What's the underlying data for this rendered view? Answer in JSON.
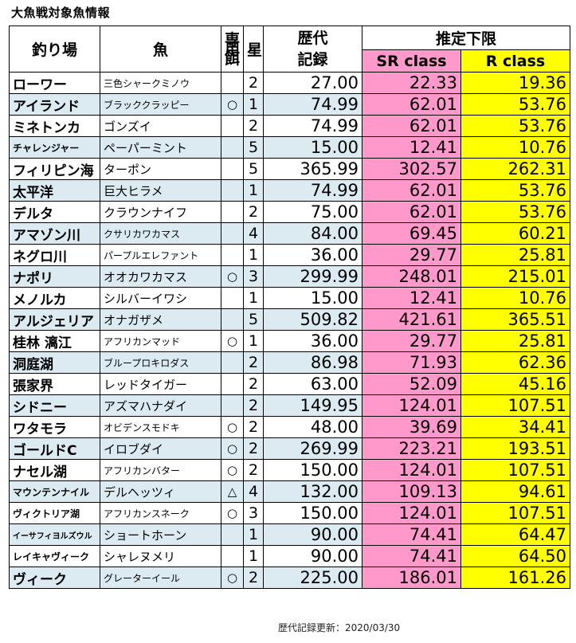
{
  "title": "大魚戦対象魚情報",
  "headers": {
    "spot": "釣り場",
    "fish": "魚",
    "bait": "専用餌",
    "star": "星",
    "record": "歴代記録",
    "estimate": "推定下限",
    "sr": "SR class",
    "r": "R class"
  },
  "rows": [
    {
      "spot": "ローワー",
      "fish": "三色シャークミノウ",
      "bait": "",
      "star": "2",
      "record": "27.00",
      "sr": "22.33",
      "r": "19.36"
    },
    {
      "spot": "アイランド",
      "fish": "ブラッククラッピー",
      "bait": "○",
      "star": "1",
      "record": "74.99",
      "sr": "62.01",
      "r": "53.76"
    },
    {
      "spot": "ミネトンカ",
      "fish": "ゴンズイ",
      "bait": "",
      "star": "2",
      "record": "74.99",
      "sr": "62.01",
      "r": "53.76"
    },
    {
      "spot": "チャレンジャー",
      "fish": "ペーパーミント",
      "bait": "",
      "star": "5",
      "record": "15.00",
      "sr": "12.41",
      "r": "10.76"
    },
    {
      "spot": "フィリピン海",
      "fish": "ターポン",
      "bait": "",
      "star": "5",
      "record": "365.99",
      "sr": "302.57",
      "r": "262.31"
    },
    {
      "spot": "太平洋",
      "fish": "巨大ヒラメ",
      "bait": "",
      "star": "1",
      "record": "74.99",
      "sr": "62.01",
      "r": "53.76"
    },
    {
      "spot": "デルタ",
      "fish": "クラウンナイフ",
      "bait": "",
      "star": "2",
      "record": "75.00",
      "sr": "62.01",
      "r": "53.76"
    },
    {
      "spot": "アマゾン川",
      "fish": "クサリカワカマス",
      "bait": "",
      "star": "4",
      "record": "84.00",
      "sr": "69.45",
      "r": "60.21"
    },
    {
      "spot": "ネグロ川",
      "fish": "パープルエレファント",
      "bait": "",
      "star": "1",
      "record": "36.00",
      "sr": "29.77",
      "r": "25.81"
    },
    {
      "spot": "ナポリ",
      "fish": "オオカワカマス",
      "bait": "○",
      "star": "3",
      "record": "299.99",
      "sr": "248.01",
      "r": "215.01"
    },
    {
      "spot": "メノルカ",
      "fish": "シルバーイワシ",
      "bait": "",
      "star": "1",
      "record": "15.00",
      "sr": "12.41",
      "r": "10.76"
    },
    {
      "spot": "アルジェリア",
      "fish": "オナガザメ",
      "bait": "",
      "star": "5",
      "record": "509.82",
      "sr": "421.61",
      "r": "365.51"
    },
    {
      "spot": "桂林 漓江",
      "fish": "アフリカンマッド",
      "bait": "○",
      "star": "1",
      "record": "36.00",
      "sr": "29.77",
      "r": "25.81"
    },
    {
      "spot": "洞庭湖",
      "fish": "ブループロキロダス",
      "bait": "",
      "star": "2",
      "record": "86.98",
      "sr": "71.93",
      "r": "62.36"
    },
    {
      "spot": "張家界",
      "fish": "レッドタイガー",
      "bait": "",
      "star": "2",
      "record": "63.00",
      "sr": "52.09",
      "r": "45.16"
    },
    {
      "spot": "シドニー",
      "fish": "アズマハナダイ",
      "bait": "",
      "star": "2",
      "record": "149.95",
      "sr": "124.01",
      "r": "107.51"
    },
    {
      "spot": "ワタモラ",
      "fish": "オビデンスモドキ",
      "bait": "○",
      "star": "2",
      "record": "48.00",
      "sr": "39.69",
      "r": "34.41"
    },
    {
      "spot": "ゴールドC",
      "fish": "イロブダイ",
      "bait": "○",
      "star": "2",
      "record": "269.99",
      "sr": "223.21",
      "r": "193.51"
    },
    {
      "spot": "ナセル湖",
      "fish": "アフリカンバター",
      "bait": "○",
      "star": "2",
      "record": "150.00",
      "sr": "124.01",
      "r": "107.51"
    },
    {
      "spot": "マウンテンナイル",
      "fish": "デルヘッツィ",
      "bait": "△",
      "star": "4",
      "record": "132.00",
      "sr": "109.13",
      "r": "94.61"
    },
    {
      "spot": "ヴィクトリア湖",
      "fish": "アフリカンスネーク",
      "bait": "○",
      "star": "3",
      "record": "150.00",
      "sr": "124.01",
      "r": "107.51"
    },
    {
      "spot": "イーサフィヨルズウル",
      "fish": "ショートホーン",
      "bait": "",
      "star": "1",
      "record": "90.00",
      "sr": "74.41",
      "r": "64.47"
    },
    {
      "spot": "レイキャヴィーク",
      "fish": "シャレヌメリ",
      "bait": "",
      "star": "1",
      "record": "90.00",
      "sr": "74.41",
      "r": "64.50"
    },
    {
      "spot": "ヴィーク",
      "fish": "グレーターイール",
      "bait": "○",
      "star": "2",
      "record": "225.00",
      "sr": "186.01",
      "r": "161.26"
    }
  ],
  "footer": "歴代記録更新：2020/03/30"
}
